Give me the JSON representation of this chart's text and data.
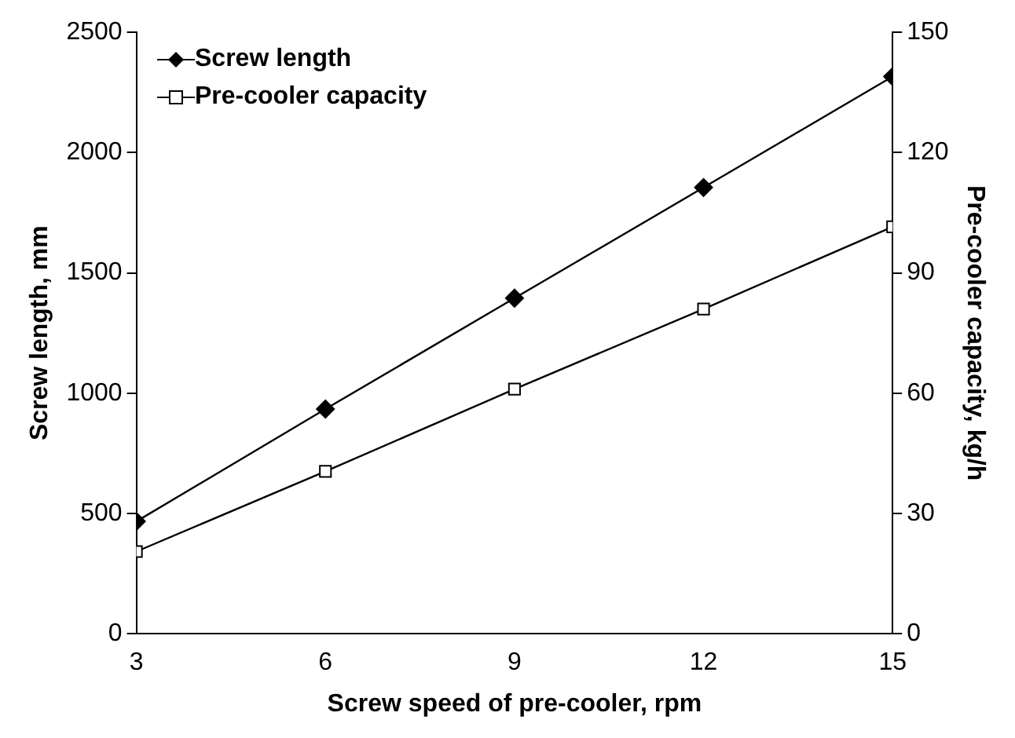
{
  "chart_data": {
    "type": "line",
    "xlabel": "Screw speed of pre-cooler, rpm",
    "ylabel": "Screw length, mm",
    "y2label": "Pre-cooler capacity, kg/h",
    "x": [
      3,
      6,
      9,
      12,
      15
    ],
    "series": [
      {
        "name": "Screw length",
        "color": "#000000",
        "marker": "diamond",
        "values": [
          467,
          934,
          1395,
          1855,
          2316
        ]
      },
      {
        "name": "Pre-cooler capacity",
        "color": "#000000",
        "marker": "square",
        "axis": "y2",
        "values": [
          20.5,
          40.5,
          61,
          81,
          101.5
        ]
      }
    ],
    "xlim": [
      3,
      15
    ],
    "xticks": [
      3,
      6,
      9,
      12,
      15
    ],
    "ylim": [
      0,
      2500
    ],
    "yticks": [
      0,
      500,
      1000,
      1500,
      2000,
      2500
    ],
    "y2lim": [
      0,
      150
    ],
    "y2ticks": [
      0,
      30,
      60,
      90,
      120,
      150
    ],
    "grid": false,
    "legend": "top left",
    "line_style": "solid"
  }
}
